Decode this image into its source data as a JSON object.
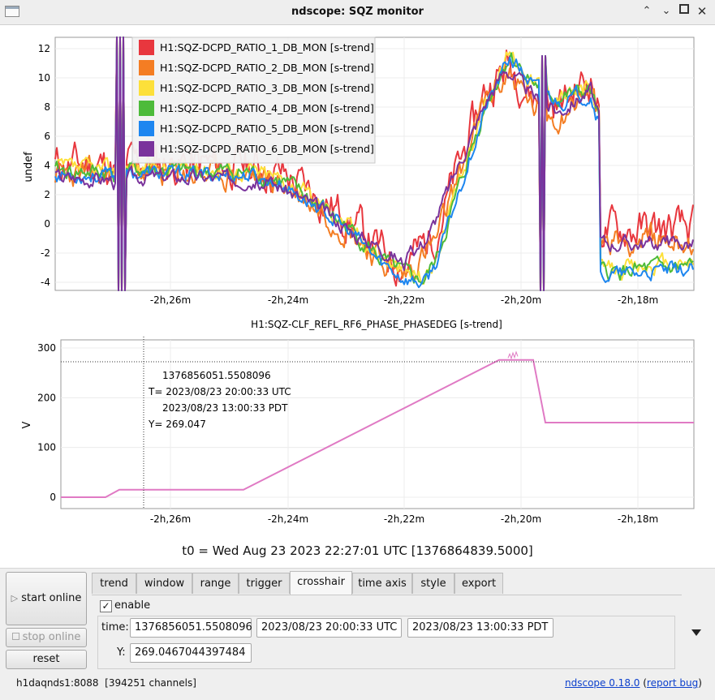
{
  "window": {
    "title": "ndscope: SQZ monitor"
  },
  "plot1": {
    "ylabel": "undef",
    "yticks": [
      "12",
      "10",
      "8",
      "6",
      "4",
      "2",
      "0",
      "-2",
      "-4"
    ],
    "ytick_values": [
      12,
      10,
      8,
      6,
      4,
      2,
      0,
      -2,
      -4
    ],
    "xticks": [
      "-2h,26m",
      "-2h,24m",
      "-2h,22m",
      "-2h,20m",
      "-2h,18m"
    ],
    "legend": [
      {
        "name": "H1:SQZ-DCPD_RATIO_1_DB_MON [s-trend]",
        "color": "#e8373e"
      },
      {
        "name": "H1:SQZ-DCPD_RATIO_2_DB_MON [s-trend]",
        "color": "#f47d23"
      },
      {
        "name": "H1:SQZ-DCPD_RATIO_3_DB_MON [s-trend]",
        "color": "#fde03a"
      },
      {
        "name": "H1:SQZ-DCPD_RATIO_4_DB_MON [s-trend]",
        "color": "#4dbb3a"
      },
      {
        "name": "H1:SQZ-DCPD_RATIO_5_DB_MON [s-trend]",
        "color": "#1d86f0"
      },
      {
        "name": "H1:SQZ-DCPD_RATIO_6_DB_MON [s-trend]",
        "color": "#7a339c"
      }
    ]
  },
  "plot2": {
    "title": "H1:SQZ-CLF_REFL_RF6_PHASE_PHASEDEG [s-trend]",
    "ylabel": "V",
    "yticks": [
      "300",
      "200",
      "100",
      "0"
    ],
    "ytick_values": [
      300,
      200,
      100,
      0
    ],
    "xticks": [
      "-2h,26m",
      "-2h,24m",
      "-2h,22m",
      "-2h,20m",
      "-2h,18m"
    ],
    "line_color": "#e07ac4",
    "crosshair": {
      "line1": "1376856051.5508096",
      "line2": "T= 2023/08/23 20:00:33 UTC",
      "line3": "2023/08/23 13:00:33 PDT",
      "line4": "Y= 269.047"
    }
  },
  "t0_label": "t0 = Wed Aug 23 2023 22:27:01 UTC [1376864839.5000]",
  "buttons": {
    "start": "start online",
    "stop": "stop online",
    "reset": "reset"
  },
  "tabs": [
    "trend",
    "window",
    "range",
    "trigger",
    "crosshair",
    "time axis",
    "style",
    "export"
  ],
  "active_tab": "crosshair",
  "crosshair_panel": {
    "enable_label": "enable",
    "enabled": true,
    "time_label": "time:",
    "time_gps": "1376856051.5508096",
    "time_utc": "2023/08/23 20:00:33 UTC",
    "time_pdt": "2023/08/23 13:00:33 PDT",
    "y_label": "Y:",
    "y_value": "269.0467044397484"
  },
  "status": {
    "server": "h1daqnds1:8088",
    "channels": "[394251 channels]",
    "version": "ndscope 0.18.0",
    "report": "report bug"
  }
}
